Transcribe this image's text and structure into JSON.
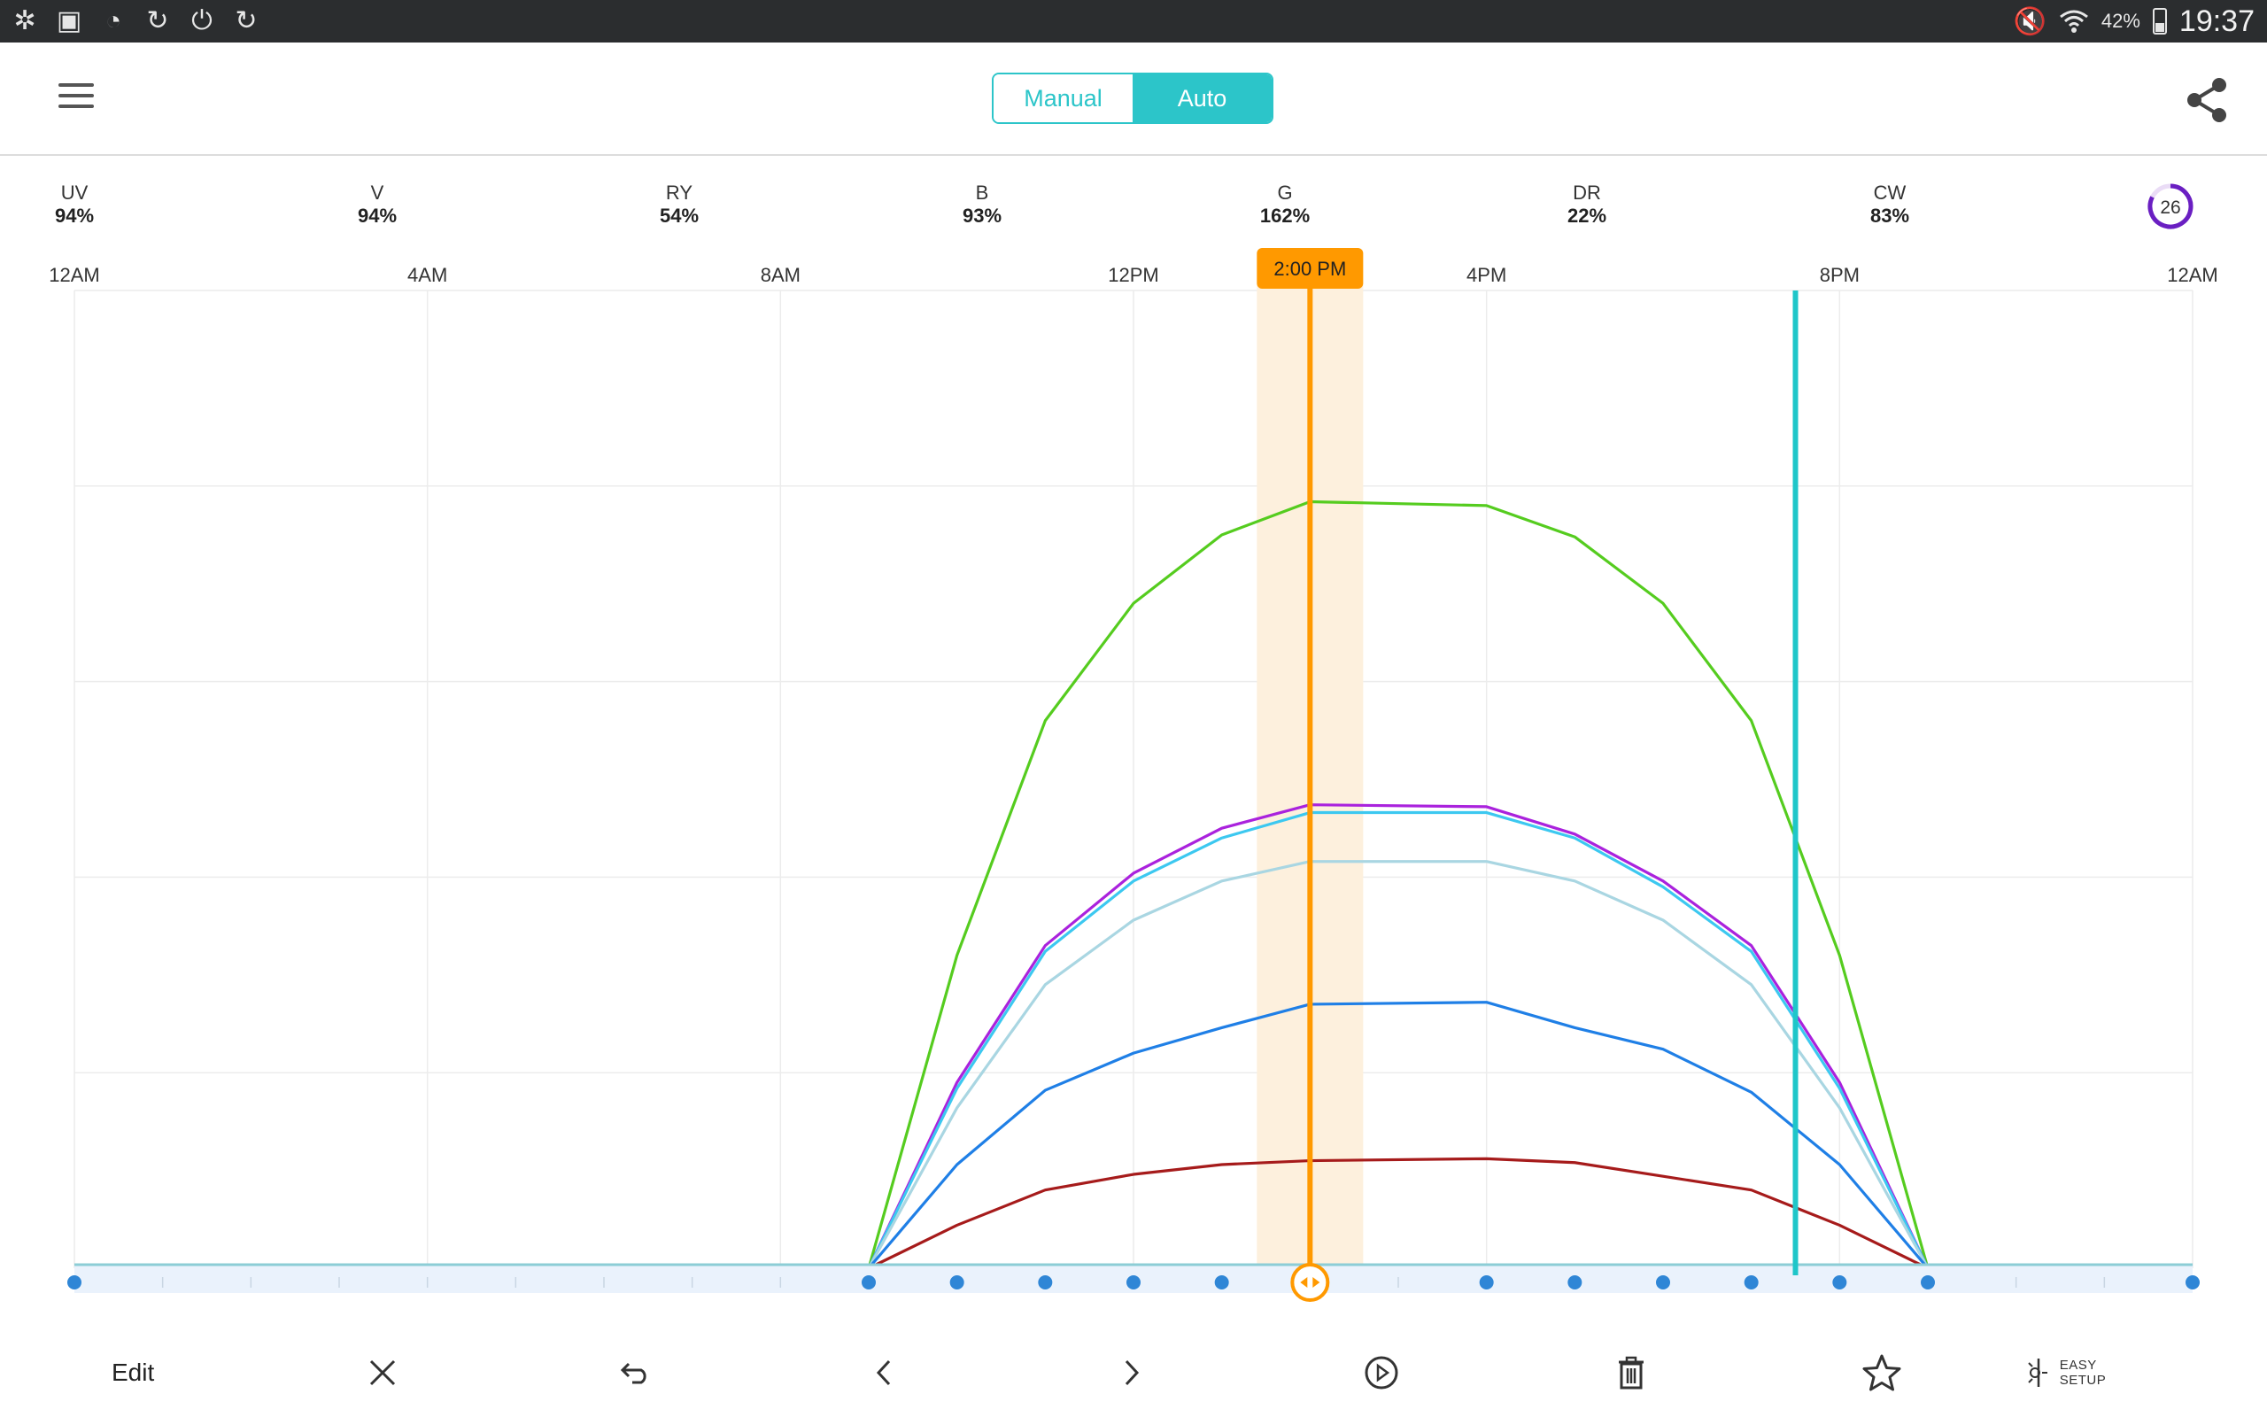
{
  "status_bar": {
    "left_icons": [
      "app-icon",
      "gallery-icon",
      "wifi-question-icon",
      "sync-icon",
      "power-sync-icon",
      "sync-icon"
    ],
    "battery": "42%",
    "time": "19:37"
  },
  "header": {
    "mode_toggle": {
      "manual": "Manual",
      "auto": "Auto",
      "selected": "Auto"
    }
  },
  "channels": [
    {
      "name": "UV",
      "value": "94%"
    },
    {
      "name": "V",
      "value": "94%"
    },
    {
      "name": "RY",
      "value": "54%"
    },
    {
      "name": "B",
      "value": "93%"
    },
    {
      "name": "G",
      "value": "162%"
    },
    {
      "name": "DR",
      "value": "22%"
    },
    {
      "name": "CW",
      "value": "83%"
    }
  ],
  "badge": {
    "value": "26"
  },
  "colors": {
    "accent": "#2cc5c9",
    "cursor": "#ff9900",
    "cursor_band": "#fdf0dd",
    "now_line": "#1fc6c9",
    "point": "#2f86d6"
  },
  "toolbar": {
    "edit_label": "Edit",
    "easy_setup_line1": "EASY",
    "easy_setup_line2": "SETUP"
  },
  "chart_data": {
    "type": "line",
    "x_axis": {
      "tick_labels": [
        "12AM",
        "4AM",
        "8AM",
        "12PM",
        "4PM",
        "8PM",
        "12AM"
      ],
      "tick_hours": [
        0,
        4,
        8,
        12,
        16,
        20,
        24
      ],
      "range_hours": [
        0,
        24
      ]
    },
    "y_range": [
      0,
      5
    ],
    "grid": true,
    "cursor": {
      "label": "2:00 PM",
      "hour": 14
    },
    "now_marker_hour": 19.5,
    "control_point_hours": [
      0,
      9,
      10,
      11,
      12,
      13,
      14,
      16,
      17,
      18,
      19,
      20,
      21,
      24
    ],
    "series": [
      {
        "color": "#55cc1f",
        "points": [
          [
            0,
            0
          ],
          [
            9,
            0
          ],
          [
            10,
            1.6
          ],
          [
            11,
            2.8
          ],
          [
            12,
            3.4
          ],
          [
            13,
            3.75
          ],
          [
            14,
            3.92
          ],
          [
            16,
            3.9
          ],
          [
            17,
            3.74
          ],
          [
            18,
            3.4
          ],
          [
            19,
            2.8
          ],
          [
            20,
            1.6
          ],
          [
            21,
            0
          ],
          [
            24,
            0
          ]
        ]
      },
      {
        "color": "#aa22dd",
        "points": [
          [
            0,
            0
          ],
          [
            9,
            0
          ],
          [
            10,
            0.95
          ],
          [
            11,
            1.65
          ],
          [
            12,
            2.02
          ],
          [
            13,
            2.25
          ],
          [
            14,
            2.37
          ],
          [
            16,
            2.36
          ],
          [
            17,
            2.22
          ],
          [
            18,
            1.98
          ],
          [
            19,
            1.65
          ],
          [
            20,
            0.95
          ],
          [
            21,
            0
          ],
          [
            24,
            0
          ]
        ]
      },
      {
        "color": "#3cc8f0",
        "points": [
          [
            0,
            0
          ],
          [
            9,
            0
          ],
          [
            10,
            0.92
          ],
          [
            11,
            1.62
          ],
          [
            12,
            1.98
          ],
          [
            13,
            2.2
          ],
          [
            14,
            2.33
          ],
          [
            16,
            2.33
          ],
          [
            17,
            2.2
          ],
          [
            18,
            1.95
          ],
          [
            19,
            1.62
          ],
          [
            20,
            0.92
          ],
          [
            21,
            0
          ],
          [
            24,
            0
          ]
        ]
      },
      {
        "color": "#a9d6e2",
        "points": [
          [
            0,
            0
          ],
          [
            9,
            0
          ],
          [
            10,
            0.82
          ],
          [
            11,
            1.45
          ],
          [
            12,
            1.78
          ],
          [
            13,
            1.98
          ],
          [
            14,
            2.08
          ],
          [
            16,
            2.08
          ],
          [
            17,
            1.98
          ],
          [
            18,
            1.78
          ],
          [
            19,
            1.45
          ],
          [
            20,
            0.82
          ],
          [
            21,
            0
          ],
          [
            24,
            0
          ]
        ]
      },
      {
        "color": "#1f7fe6",
        "points": [
          [
            0,
            0
          ],
          [
            9,
            0
          ],
          [
            10,
            0.53
          ],
          [
            11,
            0.91
          ],
          [
            12,
            1.1
          ],
          [
            13,
            1.23
          ],
          [
            14,
            1.35
          ],
          [
            16,
            1.36
          ],
          [
            17,
            1.23
          ],
          [
            18,
            1.12
          ],
          [
            19,
            0.9
          ],
          [
            20,
            0.53
          ],
          [
            21,
            0
          ],
          [
            24,
            0
          ]
        ]
      },
      {
        "color": "#a61b1b",
        "points": [
          [
            0,
            0
          ],
          [
            9,
            0
          ],
          [
            10,
            0.22
          ],
          [
            11,
            0.4
          ],
          [
            12,
            0.48
          ],
          [
            13,
            0.53
          ],
          [
            14,
            0.55
          ],
          [
            16,
            0.56
          ],
          [
            17,
            0.54
          ],
          [
            18,
            0.47
          ],
          [
            19,
            0.4
          ],
          [
            20,
            0.22
          ],
          [
            21,
            0
          ],
          [
            24,
            0
          ]
        ]
      }
    ]
  }
}
